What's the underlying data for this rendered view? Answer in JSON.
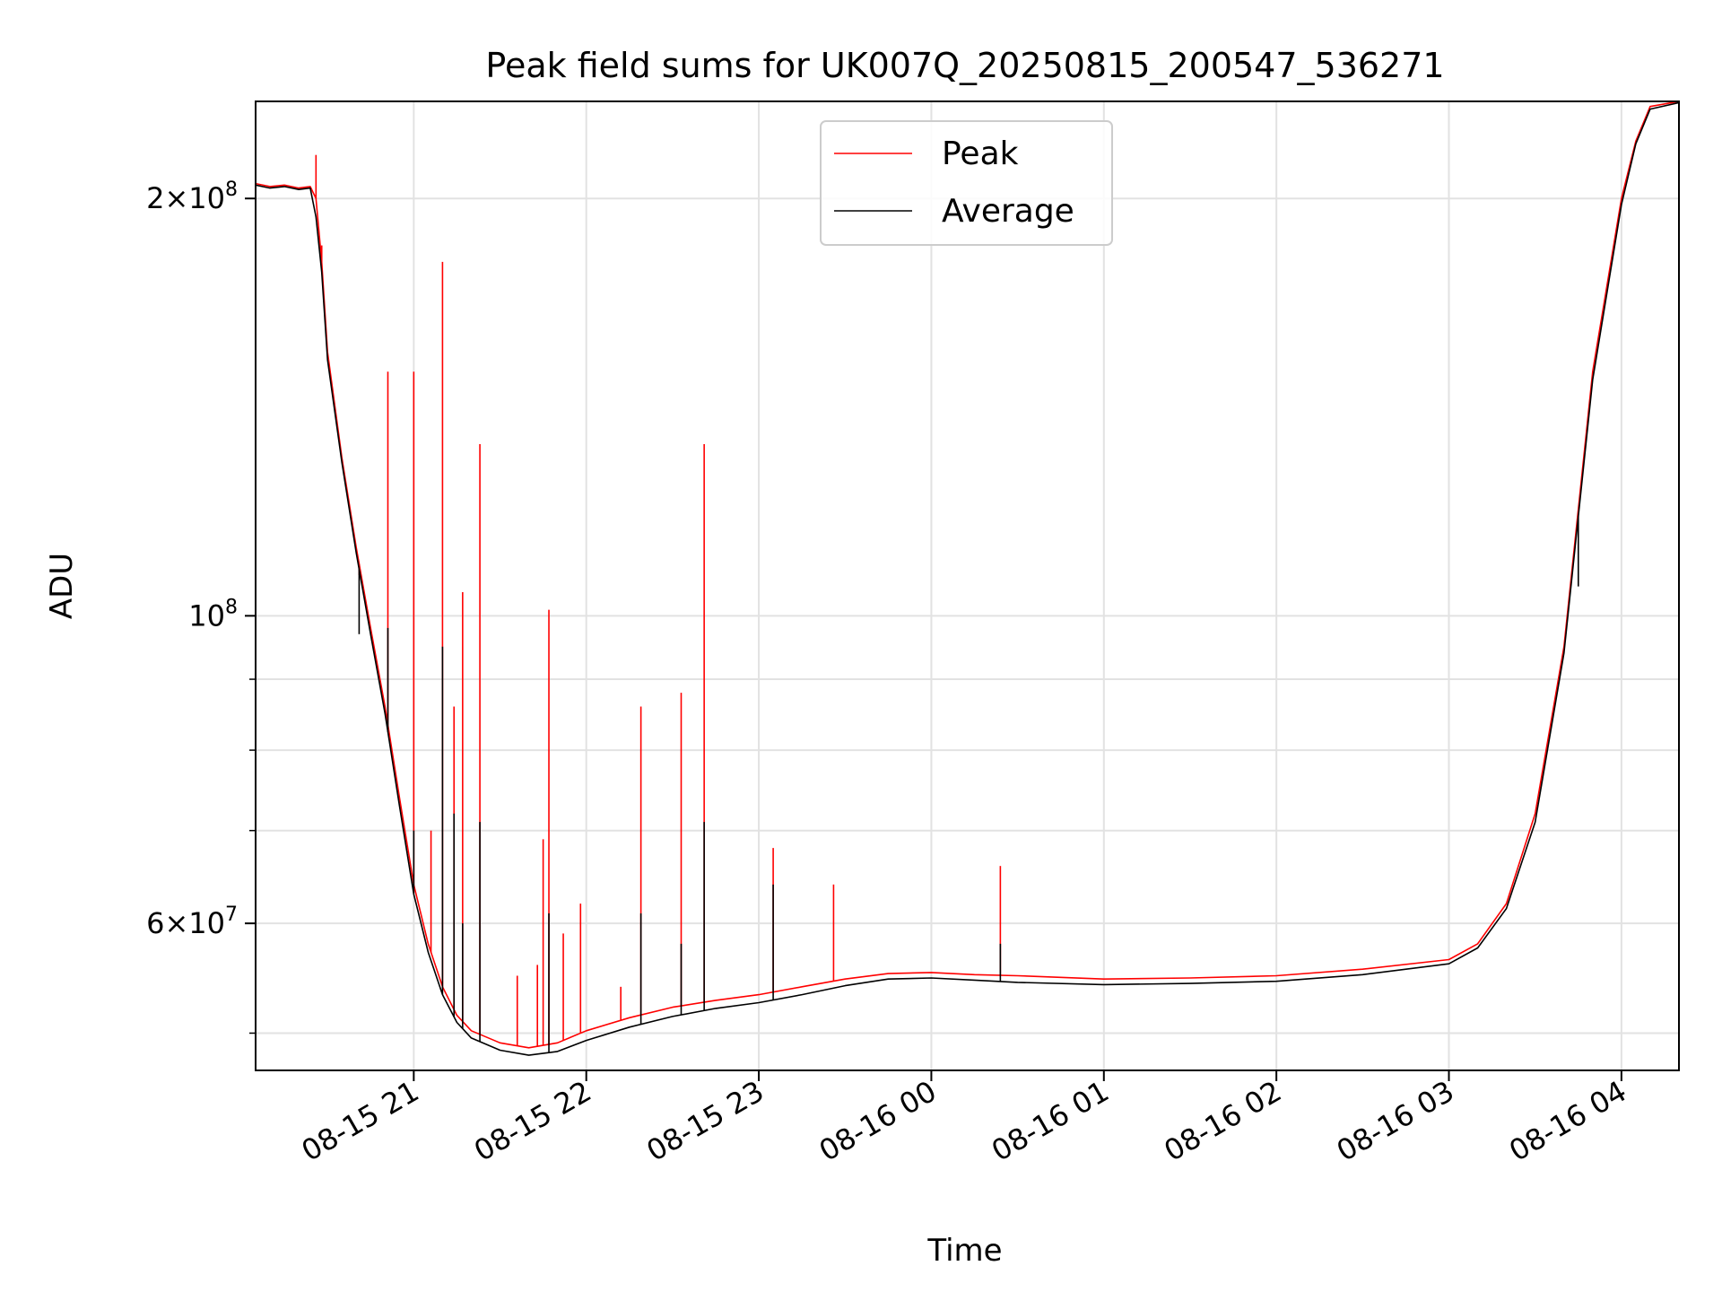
{
  "chart_data": {
    "type": "line",
    "title": "Peak field sums for UK007Q_20250815_200547_536271",
    "xlabel": "Time",
    "ylabel": "ADU",
    "y_scale": "log",
    "ylim": [
      47000000,
      235000000
    ],
    "xlim": [
      "2025-08-15T20:05:00",
      "2025-08-16T04:20:00"
    ],
    "grid": true,
    "legend_position": "top-center",
    "x_ticks": [
      {
        "t": "2025-08-15T21:00",
        "label": "08-15 21"
      },
      {
        "t": "2025-08-15T22:00",
        "label": "08-15 22"
      },
      {
        "t": "2025-08-15T23:00",
        "label": "08-15 23"
      },
      {
        "t": "2025-08-16T00:00",
        "label": "08-16 00"
      },
      {
        "t": "2025-08-16T01:00",
        "label": "08-16 01"
      },
      {
        "t": "2025-08-16T02:00",
        "label": "08-16 02"
      },
      {
        "t": "2025-08-16T03:00",
        "label": "08-16 03"
      },
      {
        "t": "2025-08-16T04:00",
        "label": "08-16 04"
      }
    ],
    "y_major_ticks": [
      {
        "value": 60000000,
        "label": "6×10⁷",
        "mant": "6",
        "exp": "7"
      },
      {
        "value": 100000000,
        "label": "10⁸",
        "mant": "",
        "exp": "8"
      },
      {
        "value": 200000000,
        "label": "2×10⁸",
        "mant": "2",
        "exp": "8"
      }
    ],
    "y_minor_ticks": [
      50000000,
      70000000,
      80000000,
      90000000
    ],
    "series": [
      {
        "name": "Peak",
        "color": "#ff0000",
        "points": [
          [
            "2025-08-15T20:05",
            205000000
          ],
          [
            "2025-08-15T20:10",
            204000000
          ],
          [
            "2025-08-15T20:15",
            204500000
          ],
          [
            "2025-08-15T20:20",
            203500000
          ],
          [
            "2025-08-15T20:24",
            204000000
          ],
          [
            "2025-08-15T20:26",
            200000000
          ],
          [
            "2025-08-15T20:28",
            180000000
          ],
          [
            "2025-08-15T20:30",
            155000000
          ],
          [
            "2025-08-15T20:35",
            130000000
          ],
          [
            "2025-08-15T20:40",
            112000000
          ],
          [
            "2025-08-15T20:45",
            98000000
          ],
          [
            "2025-08-15T20:50",
            86000000
          ],
          [
            "2025-08-15T20:55",
            74000000
          ],
          [
            "2025-08-15T21:00",
            64000000
          ],
          [
            "2025-08-15T21:05",
            58000000
          ],
          [
            "2025-08-15T21:10",
            54000000
          ],
          [
            "2025-08-15T21:15",
            51500000
          ],
          [
            "2025-08-15T21:20",
            50200000
          ],
          [
            "2025-08-15T21:30",
            49200000
          ],
          [
            "2025-08-15T21:40",
            48800000
          ],
          [
            "2025-08-15T21:50",
            49200000
          ],
          [
            "2025-08-15T22:00",
            50200000
          ],
          [
            "2025-08-15T22:15",
            51300000
          ],
          [
            "2025-08-15T22:30",
            52200000
          ],
          [
            "2025-08-15T22:45",
            52800000
          ],
          [
            "2025-08-15T23:00",
            53300000
          ],
          [
            "2025-08-15T23:15",
            54000000
          ],
          [
            "2025-08-15T23:30",
            54700000
          ],
          [
            "2025-08-15T23:45",
            55200000
          ],
          [
            "2025-08-16T00:00",
            55300000
          ],
          [
            "2025-08-16T00:15",
            55100000
          ],
          [
            "2025-08-16T00:30",
            55000000
          ],
          [
            "2025-08-16T01:00",
            54700000
          ],
          [
            "2025-08-16T01:30",
            54800000
          ],
          [
            "2025-08-16T02:00",
            55000000
          ],
          [
            "2025-08-16T02:30",
            55600000
          ],
          [
            "2025-08-16T03:00",
            56500000
          ],
          [
            "2025-08-16T03:10",
            58000000
          ],
          [
            "2025-08-16T03:20",
            62000000
          ],
          [
            "2025-08-16T03:30",
            72000000
          ],
          [
            "2025-08-16T03:40",
            95000000
          ],
          [
            "2025-08-16T03:50",
            150000000
          ],
          [
            "2025-08-16T04:00",
            200000000
          ],
          [
            "2025-08-16T04:05",
            220000000
          ],
          [
            "2025-08-16T04:10",
            233000000
          ],
          [
            "2025-08-16T04:20",
            235000000
          ]
        ],
        "spikes": [
          [
            "2025-08-15T20:26",
            215000000
          ],
          [
            "2025-08-15T20:28",
            185000000
          ],
          [
            "2025-08-15T20:41",
            107000000
          ],
          [
            "2025-08-15T20:51",
            150000000
          ],
          [
            "2025-08-15T21:00",
            150000000
          ],
          [
            "2025-08-15T21:06",
            70000000
          ],
          [
            "2025-08-15T21:10",
            180000000
          ],
          [
            "2025-08-15T21:14",
            86000000
          ],
          [
            "2025-08-15T21:17",
            104000000
          ],
          [
            "2025-08-15T21:23",
            133000000
          ],
          [
            "2025-08-15T21:36",
            55000000
          ],
          [
            "2025-08-15T21:43",
            56000000
          ],
          [
            "2025-08-15T21:45",
            69000000
          ],
          [
            "2025-08-15T21:47",
            101000000
          ],
          [
            "2025-08-15T21:52",
            59000000
          ],
          [
            "2025-08-15T21:58",
            62000000
          ],
          [
            "2025-08-15T22:12",
            54000000
          ],
          [
            "2025-08-15T22:19",
            86000000
          ],
          [
            "2025-08-15T22:33",
            88000000
          ],
          [
            "2025-08-15T22:41",
            133000000
          ],
          [
            "2025-08-15T23:05",
            68000000
          ],
          [
            "2025-08-15T23:26",
            64000000
          ],
          [
            "2025-08-16T00:24",
            66000000
          ]
        ]
      },
      {
        "name": "Average",
        "color": "#000000",
        "points": [
          [
            "2025-08-15T20:05",
            204500000
          ],
          [
            "2025-08-15T20:10",
            203500000
          ],
          [
            "2025-08-15T20:15",
            204000000
          ],
          [
            "2025-08-15T20:20",
            203000000
          ],
          [
            "2025-08-15T20:24",
            203500000
          ],
          [
            "2025-08-15T20:26",
            194000000
          ],
          [
            "2025-08-15T20:28",
            177000000
          ],
          [
            "2025-08-15T20:30",
            153000000
          ],
          [
            "2025-08-15T20:35",
            129000000
          ],
          [
            "2025-08-15T20:40",
            111000000
          ],
          [
            "2025-08-15T20:45",
            97000000
          ],
          [
            "2025-08-15T20:50",
            85000000
          ],
          [
            "2025-08-15T20:55",
            73000000
          ],
          [
            "2025-08-15T21:00",
            63000000
          ],
          [
            "2025-08-15T21:05",
            57200000
          ],
          [
            "2025-08-15T21:10",
            53300000
          ],
          [
            "2025-08-15T21:15",
            50900000
          ],
          [
            "2025-08-15T21:20",
            49600000
          ],
          [
            "2025-08-15T21:30",
            48600000
          ],
          [
            "2025-08-15T21:40",
            48200000
          ],
          [
            "2025-08-15T21:50",
            48500000
          ],
          [
            "2025-08-15T22:00",
            49400000
          ],
          [
            "2025-08-15T22:15",
            50500000
          ],
          [
            "2025-08-15T22:30",
            51400000
          ],
          [
            "2025-08-15T22:45",
            52100000
          ],
          [
            "2025-08-15T23:00",
            52600000
          ],
          [
            "2025-08-15T23:15",
            53300000
          ],
          [
            "2025-08-15T23:30",
            54100000
          ],
          [
            "2025-08-15T23:45",
            54700000
          ],
          [
            "2025-08-16T00:00",
            54800000
          ],
          [
            "2025-08-16T00:15",
            54600000
          ],
          [
            "2025-08-16T00:30",
            54400000
          ],
          [
            "2025-08-16T01:00",
            54200000
          ],
          [
            "2025-08-16T01:30",
            54300000
          ],
          [
            "2025-08-16T02:00",
            54500000
          ],
          [
            "2025-08-16T02:30",
            55100000
          ],
          [
            "2025-08-16T03:00",
            56100000
          ],
          [
            "2025-08-16T03:10",
            57600000
          ],
          [
            "2025-08-16T03:20",
            61500000
          ],
          [
            "2025-08-16T03:30",
            71000000
          ],
          [
            "2025-08-16T03:40",
            94000000
          ],
          [
            "2025-08-16T03:50",
            148000000
          ],
          [
            "2025-08-16T04:00",
            198000000
          ],
          [
            "2025-08-16T04:05",
            219000000
          ],
          [
            "2025-08-16T04:10",
            232000000
          ],
          [
            "2025-08-16T04:20",
            234500000
          ]
        ],
        "spikes": [
          [
            "2025-08-15T20:41",
            97000000
          ],
          [
            "2025-08-15T20:51",
            98000000
          ],
          [
            "2025-08-15T21:00",
            70000000
          ],
          [
            "2025-08-15T21:10",
            95000000
          ],
          [
            "2025-08-15T21:14",
            72000000
          ],
          [
            "2025-08-15T21:17",
            60000000
          ],
          [
            "2025-08-15T21:23",
            71000000
          ],
          [
            "2025-08-15T21:47",
            61000000
          ],
          [
            "2025-08-15T22:19",
            61000000
          ],
          [
            "2025-08-15T22:33",
            58000000
          ],
          [
            "2025-08-15T22:41",
            71000000
          ],
          [
            "2025-08-15T23:05",
            64000000
          ],
          [
            "2025-08-16T00:24",
            58000000
          ],
          [
            "2025-08-16T03:45",
            105000000
          ]
        ]
      }
    ]
  }
}
